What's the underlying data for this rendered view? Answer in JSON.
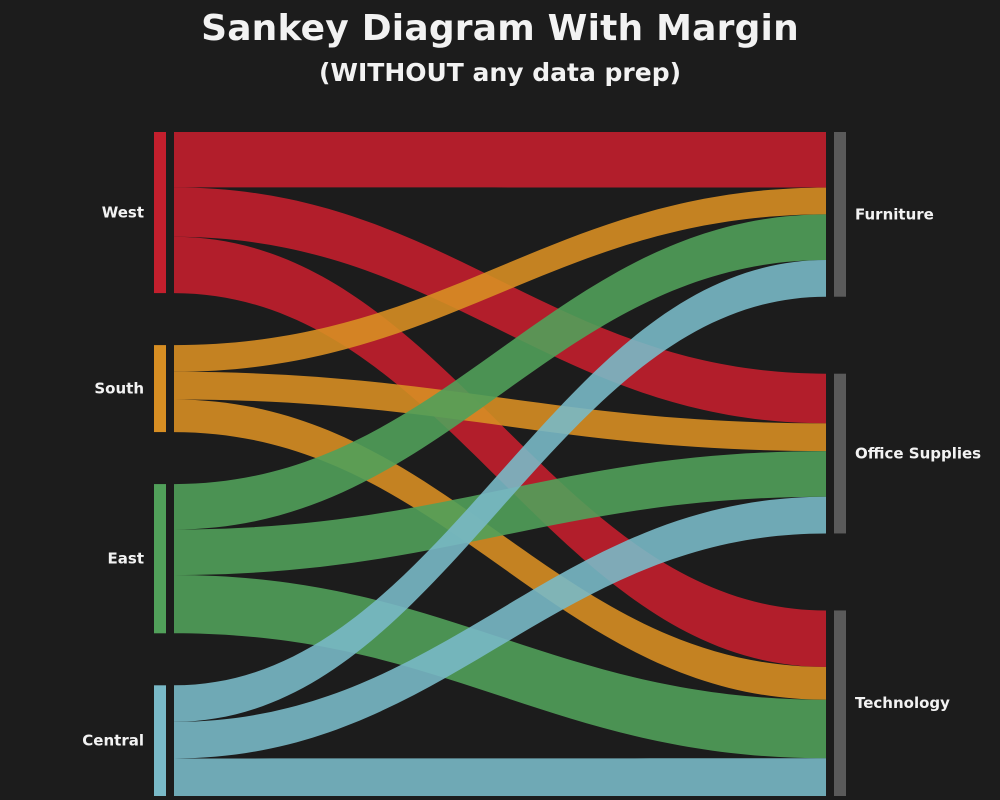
{
  "header": {
    "title": "Sankey Diagram With Margin",
    "subtitle": "(WITHOUT any data prep)"
  },
  "chart_data": {
    "type": "sankey",
    "sources": [
      {
        "name": "West",
        "color": "#c31f2d"
      },
      {
        "name": "South",
        "color": "#d78e23"
      },
      {
        "name": "East",
        "color": "#51a05a"
      },
      {
        "name": "Central",
        "color": "#79b9c7"
      }
    ],
    "targets": [
      {
        "name": "Furniture",
        "color": "#5a5a5a"
      },
      {
        "name": "Office Supplies",
        "color": "#5a5a5a"
      },
      {
        "name": "Technology",
        "color": "#5a5a5a"
      }
    ],
    "flows": [
      {
        "source": "West",
        "target": "Furniture",
        "value": 56
      },
      {
        "source": "West",
        "target": "Office Supplies",
        "value": 50
      },
      {
        "source": "West",
        "target": "Technology",
        "value": 57
      },
      {
        "source": "South",
        "target": "Furniture",
        "value": 27
      },
      {
        "source": "South",
        "target": "Office Supplies",
        "value": 28
      },
      {
        "source": "South",
        "target": "Technology",
        "value": 33
      },
      {
        "source": "East",
        "target": "Furniture",
        "value": 46
      },
      {
        "source": "East",
        "target": "Office Supplies",
        "value": 46
      },
      {
        "source": "East",
        "target": "Technology",
        "value": 59
      },
      {
        "source": "Central",
        "target": "Furniture",
        "value": 37
      },
      {
        "source": "Central",
        "target": "Office Supplies",
        "value": 37
      },
      {
        "source": "Central",
        "target": "Technology",
        "value": 38
      }
    ]
  }
}
